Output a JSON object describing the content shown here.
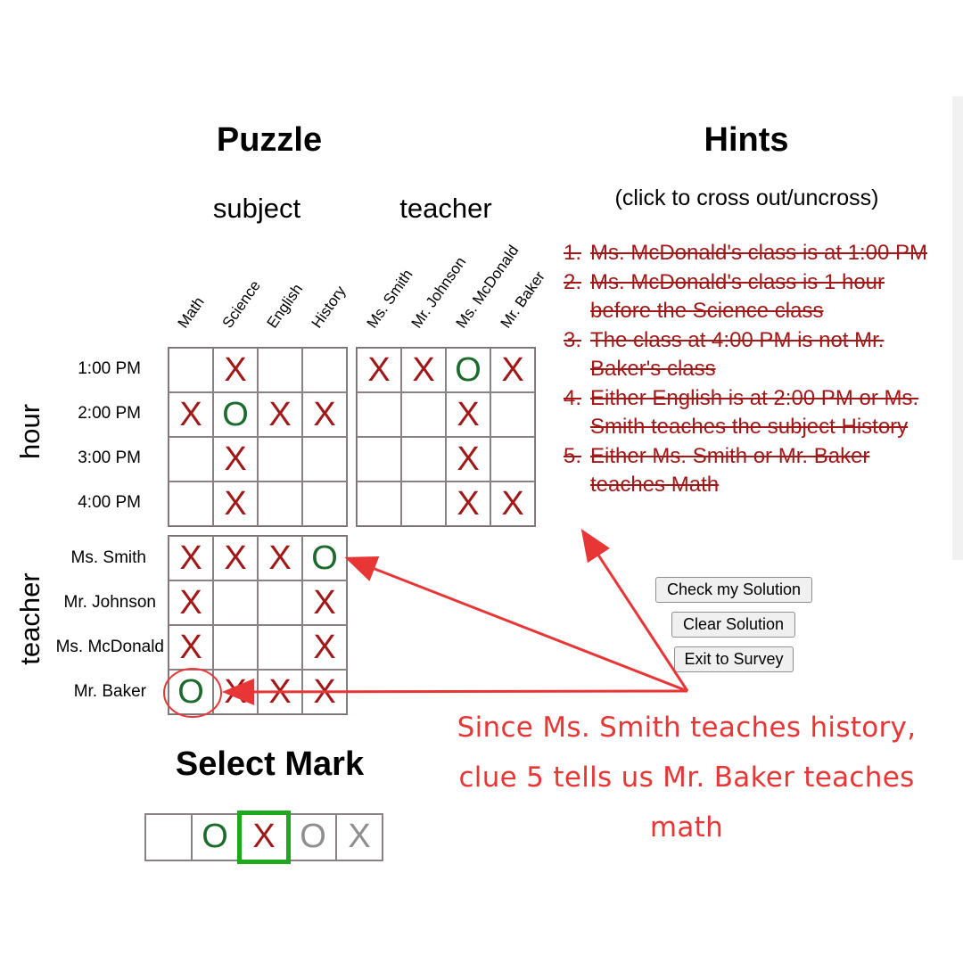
{
  "puzzle": {
    "title": "Puzzle",
    "subject_header": "subject",
    "teacher_header": "teacher",
    "subjects": [
      "Math",
      "Science",
      "English",
      "History"
    ],
    "teachers": [
      "Ms. Smith",
      "Mr. Johnson",
      "Ms. McDonald",
      "Mr. Baker"
    ],
    "hours": [
      "1:00 PM",
      "2:00 PM",
      "3:00 PM",
      "4:00 PM"
    ],
    "hour_side_label": "hour",
    "teacher_side_label": "teacher",
    "grid_hour_subject": [
      [
        "",
        "X",
        "",
        ""
      ],
      [
        "X",
        "O",
        "X",
        "X"
      ],
      [
        "",
        "X",
        "",
        ""
      ],
      [
        "",
        "X",
        "",
        ""
      ]
    ],
    "grid_hour_teacher": [
      [
        "X",
        "X",
        "O",
        "X"
      ],
      [
        "",
        "",
        "X",
        ""
      ],
      [
        "",
        "",
        "X",
        ""
      ],
      [
        "",
        "",
        "X",
        "X"
      ]
    ],
    "grid_teacher_subject": [
      [
        "X",
        "X",
        "X",
        "O"
      ],
      [
        "X",
        "",
        "",
        "X"
      ],
      [
        "X",
        "",
        "",
        "X"
      ],
      [
        "O",
        "X",
        "X",
        "X"
      ]
    ]
  },
  "hints": {
    "title": "Hints",
    "subtitle": "(click to cross out/uncross)",
    "items": [
      {
        "num": "1.",
        "text": "Ms. McDonald's class is at 1:00 PM"
      },
      {
        "num": "2.",
        "text": "Ms. McDonald's class is 1 hour before the Science class"
      },
      {
        "num": "3.",
        "text": "The class at 4:00 PM is not Mr. Baker's class"
      },
      {
        "num": "4.",
        "text": "Either English is at 2:00 PM or Ms. Smith teaches the subject History"
      },
      {
        "num": "5.",
        "text": "Either Ms. Smith or Mr. Baker teaches Math"
      }
    ]
  },
  "buttons": {
    "check": "Check my Solution",
    "clear": "Clear Solution",
    "exit": "Exit to Survey"
  },
  "annotation": {
    "text": "Since Ms. Smith teaches history, clue 5 tells us Mr. Baker teaches math",
    "color": "#e83636"
  },
  "select_mark": {
    "title": "Select Mark",
    "options": [
      "",
      "O",
      "X",
      "O",
      "X"
    ],
    "selected_index": 2
  },
  "colors": {
    "x_mark": "#a01818",
    "o_mark": "#1a6b2c",
    "selected_border": "#1ea81e",
    "hint_text": "#a01818"
  }
}
